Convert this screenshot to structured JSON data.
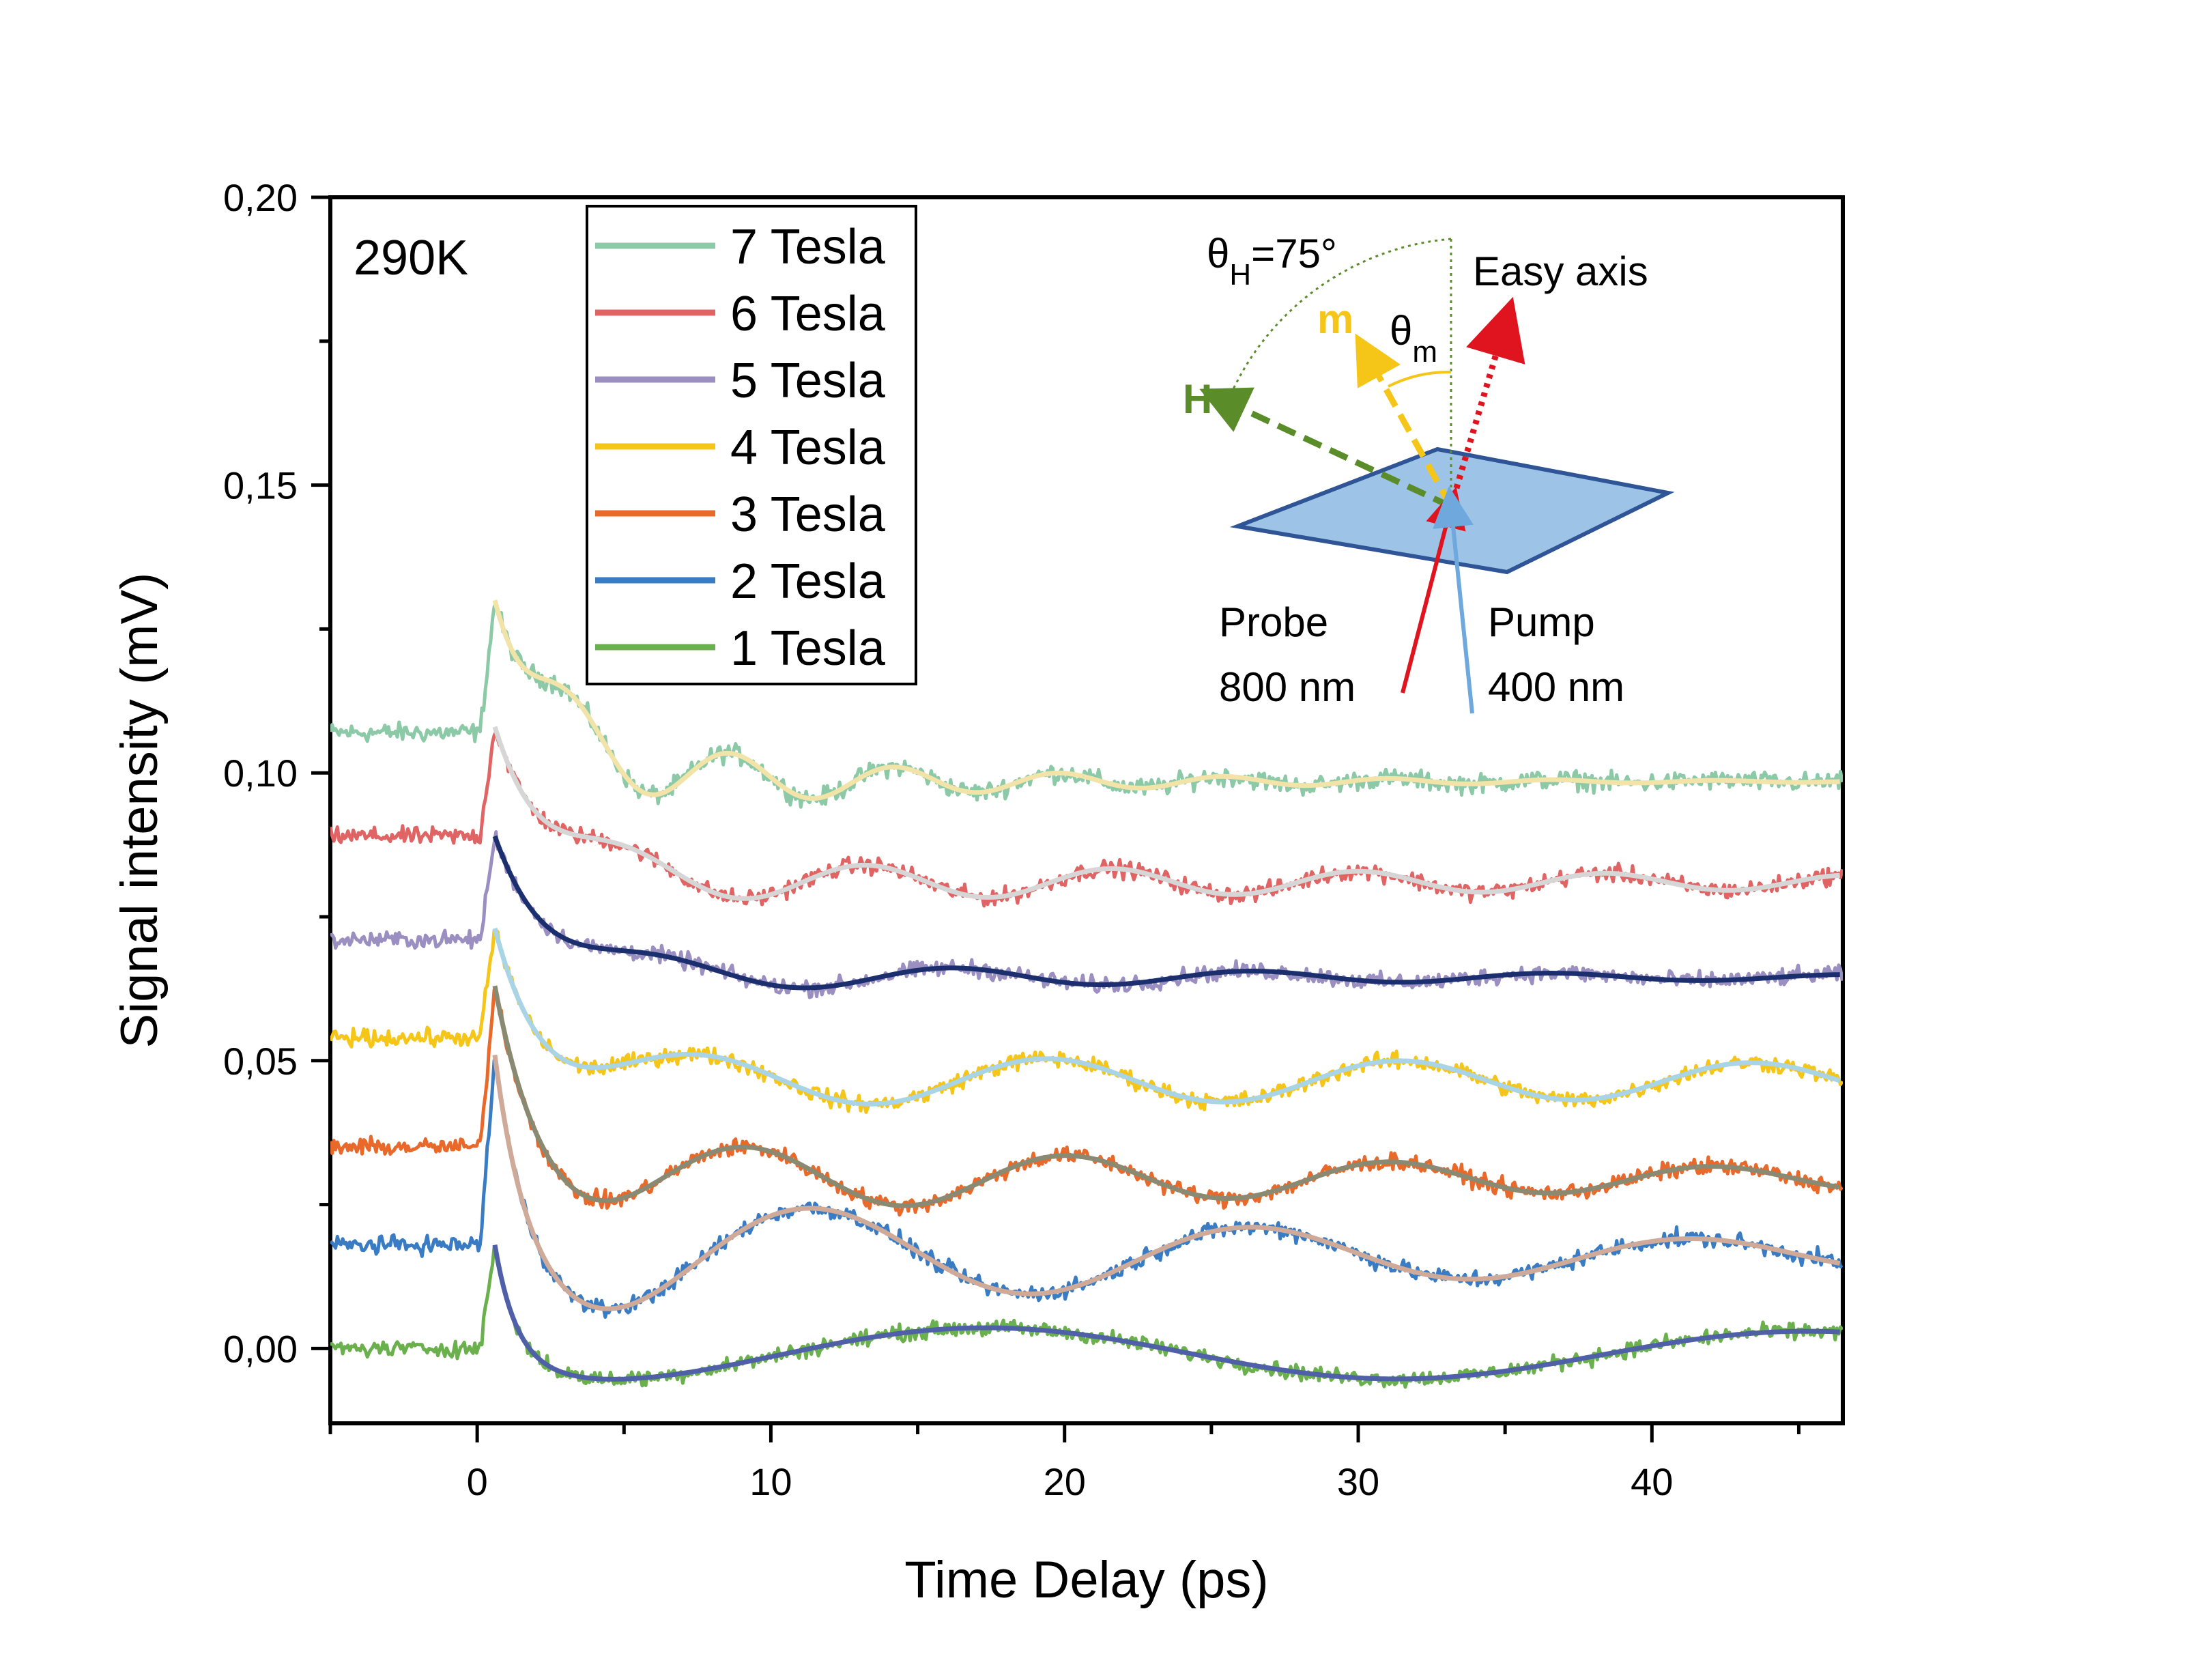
{
  "chart_data": {
    "type": "line",
    "title": "",
    "xlabel": "Time Delay (ps)",
    "ylabel": "Signal intensity (mV)",
    "xlim": [
      -5,
      46.5
    ],
    "ylim": [
      -0.013,
      0.2
    ],
    "xticks": [
      0,
      10,
      20,
      30,
      40
    ],
    "xtick_labels": [
      "0",
      "10",
      "20",
      "30",
      "40"
    ],
    "yticks": [
      0.0,
      0.05,
      0.1,
      0.15,
      0.2
    ],
    "ytick_labels": [
      "0,00",
      "0,05",
      "0,10",
      "0,15",
      "0,20"
    ],
    "temperature_label": "290K",
    "legend_position": "top-left",
    "series": [
      {
        "name": "7 Tesla",
        "color": "#8cc9a6",
        "fit_color": "#f2e3a8",
        "baseline": 0.107,
        "peak": 0.13,
        "settle": 0.0985,
        "decay_tau": 2.2,
        "osc_amp": 0.0085,
        "osc_period": 5.6,
        "osc_phase": -1.2,
        "osc_tau": 11,
        "noise": 0.0018
      },
      {
        "name": "6 Tesla",
        "color": "#e06464",
        "fit_color": "#d6d6d6",
        "baseline": 0.089,
        "peak": 0.108,
        "settle": 0.081,
        "decay_tau": 2.0,
        "osc_amp": 0.004,
        "osc_period": 8.4,
        "osc_phase": -1.6,
        "osc_tau": 40,
        "noise": 0.0016
      },
      {
        "name": "5 Tesla",
        "color": "#9a8fc0",
        "fit_color": "#1b2f6e",
        "baseline": 0.071,
        "peak": 0.089,
        "settle": 0.0645,
        "decay_tau": 2.0,
        "osc_amp": 0.003,
        "osc_period": 10.2,
        "osc_phase": -1.8,
        "osc_tau": 25,
        "noise": 0.0016
      },
      {
        "name": "4 Tesla",
        "color": "#f5c518",
        "fit_color": "#a8d4e6",
        "baseline": 0.054,
        "peak": 0.073,
        "settle": 0.0465,
        "decay_tau": 1.6,
        "osc_amp": 0.0045,
        "osc_period": 12.0,
        "osc_phase": -2.0,
        "osc_tau": 120,
        "noise": 0.0016
      },
      {
        "name": "3 Tesla",
        "color": "#e8692a",
        "fit_color": "#8a8a72",
        "baseline": 0.035,
        "peak": 0.063,
        "settle": 0.0295,
        "decay_tau": 1.2,
        "osc_amp": 0.007,
        "osc_period": 11.0,
        "osc_phase": -3.3,
        "osc_tau": 35,
        "noise": 0.0016
      },
      {
        "name": "2 Tesla",
        "color": "#3a7cc4",
        "fit_color": "#d0aa98",
        "baseline": 0.018,
        "peak": 0.051,
        "settle": 0.016,
        "decay_tau": 0.9,
        "osc_amp": 0.012,
        "osc_period": 15.0,
        "osc_phase": -3.0,
        "osc_tau": 30,
        "noise": 0.0016
      },
      {
        "name": "1 Tesla",
        "color": "#6ab04c",
        "fit_color": "#4f5fa8",
        "baseline": 0.0,
        "peak": 0.018,
        "settle": -0.001,
        "decay_tau": 0.7,
        "osc_amp": 0.005,
        "osc_period": 28.0,
        "osc_phase": -2.2,
        "osc_tau": 200,
        "noise": 0.0015
      }
    ],
    "inset": {
      "angle_h": "θH=75°",
      "easy_axis": "Easy axis",
      "theta_m": "θm",
      "m_label": "m",
      "h_label": "H",
      "probe_line1": "Probe",
      "probe_line2": "800 nm",
      "pump_line1": "Pump",
      "pump_line2": "400 nm",
      "h_color": "#5b8c2a",
      "m_color": "#f5c518",
      "easy_color": "#e0141e",
      "probe_color": "#e0141e",
      "pump_color": "#6fa8dc",
      "plane_color": "#9dc3e6",
      "plane_edge": "#2f5597"
    }
  }
}
